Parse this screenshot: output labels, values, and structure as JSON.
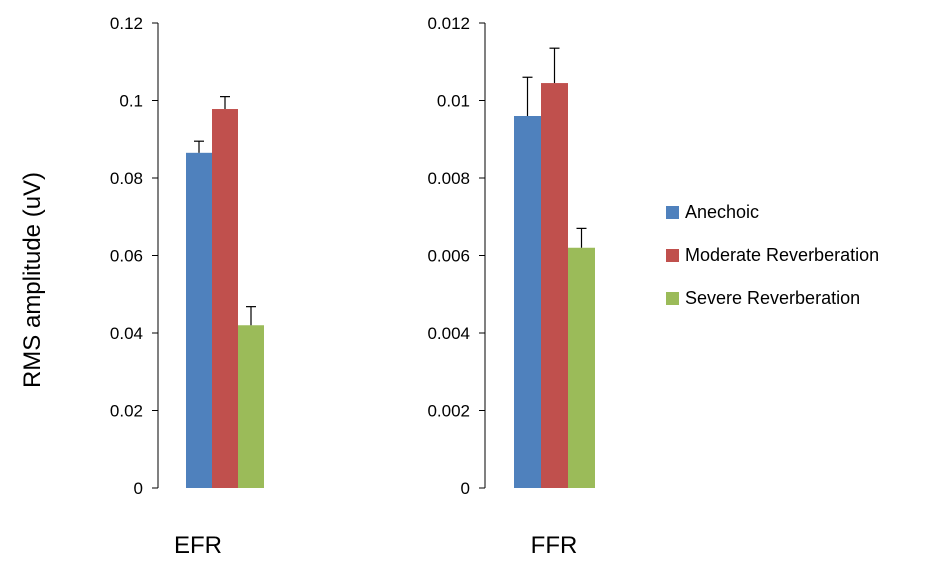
{
  "chart_data": [
    {
      "type": "bar",
      "panel_label": "EFR",
      "ylabel": "RMS amplitude (uV)",
      "ylim": [
        0,
        0.12
      ],
      "yticks": [
        "0",
        "0.02",
        "0.04",
        "0.06",
        "0.08",
        "0.1",
        "0.12"
      ],
      "grid": false,
      "series": [
        {
          "name": "Anechoic",
          "value": 0.0865,
          "error": 0.003
        },
        {
          "name": "Moderate Reverberation",
          "value": 0.0978,
          "error": 0.0032
        },
        {
          "name": "Severe Reverberation",
          "value": 0.042,
          "error": 0.0048
        }
      ]
    },
    {
      "type": "bar",
      "panel_label": "FFR",
      "ylim": [
        0,
        0.012
      ],
      "yticks": [
        "0",
        "0.002",
        "0.004",
        "0.006",
        "0.008",
        "0.01",
        "0.012"
      ],
      "grid": false,
      "series": [
        {
          "name": "Anechoic",
          "value": 0.0096,
          "error": 0.001
        },
        {
          "name": "Moderate Reverberation",
          "value": 0.01045,
          "error": 0.0009
        },
        {
          "name": "Severe Reverberation",
          "value": 0.0062,
          "error": 0.0005
        }
      ]
    }
  ],
  "legend": {
    "placement": "right",
    "items": [
      {
        "label": "Anechoic",
        "color": "#4f81bd"
      },
      {
        "label": "Moderate Reverberation",
        "color": "#c0504d"
      },
      {
        "label": "Severe Reverberation",
        "color": "#9bbb59"
      }
    ]
  }
}
